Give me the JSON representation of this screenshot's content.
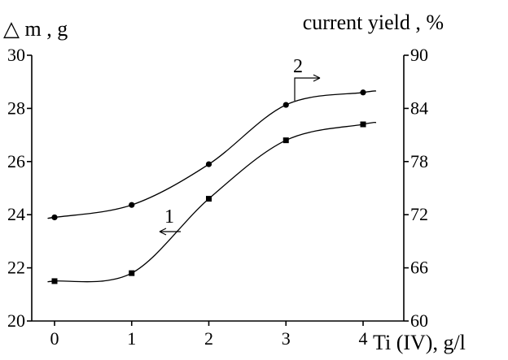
{
  "chart_data": {
    "type": "line",
    "x_axis": {
      "ticks": [
        0,
        1,
        2,
        3,
        4
      ],
      "tick_labels": [
        "0",
        "1",
        "2",
        "3",
        "4"
      ],
      "label": "Ti (IV),  g/l"
    },
    "y_left": {
      "label": "△ m , g",
      "range": [
        20,
        30
      ],
      "ticks": [
        20,
        22,
        24,
        26,
        28,
        30
      ],
      "tick_labels": [
        "20",
        "22",
        "24",
        "26",
        "28",
        "30"
      ]
    },
    "y_right": {
      "label": "current yield , %",
      "range": [
        60,
        90
      ],
      "ticks": [
        60,
        66,
        72,
        78,
        84,
        90
      ],
      "tick_labels": [
        "60",
        "66",
        "72",
        "78",
        "84",
        "90"
      ]
    },
    "grid": false,
    "series": [
      {
        "id": "1",
        "label": "1",
        "axis": "left",
        "marker": "square",
        "x": [
          0,
          1,
          2,
          3,
          4
        ],
        "y": [
          21.5,
          21.8,
          24.6,
          26.8,
          27.4
        ]
      },
      {
        "id": "2",
        "label": "2",
        "axis": "right",
        "marker": "circle",
        "x": [
          0,
          1,
          2,
          3,
          4
        ],
        "y": [
          71.7,
          73.1,
          77.7,
          84.4,
          85.8
        ]
      }
    ]
  }
}
